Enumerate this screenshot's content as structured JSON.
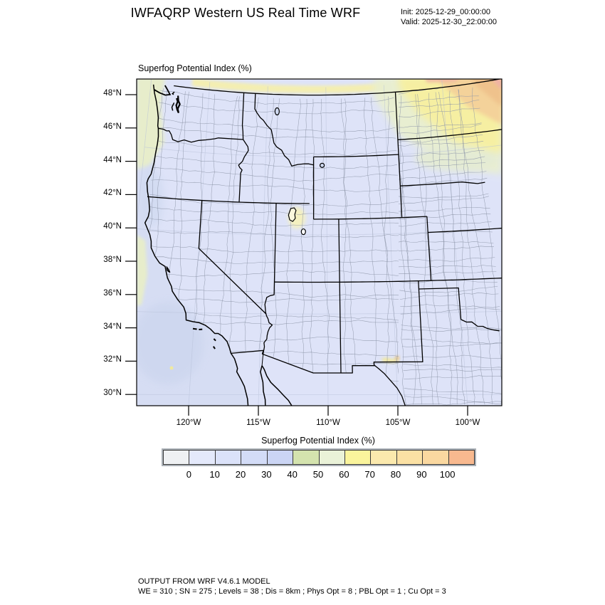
{
  "header": {
    "title": "IWFAQRP Western US Real Time WRF",
    "init": "Init: 2025-12-29_00:00:00",
    "valid": "Valid: 2025-12-30_22:00:00"
  },
  "map": {
    "subtitle": "Superfog Potential Index  (%)",
    "lat_ticks": [
      "48°N",
      "46°N",
      "44°N",
      "42°N",
      "40°N",
      "38°N",
      "36°N",
      "34°N",
      "32°N",
      "30°N"
    ],
    "lon_ticks": [
      "120°W",
      "115°W",
      "110°W",
      "105°W",
      "100°W"
    ],
    "palette": {
      "ocean": "#d6ddf3",
      "land": "#dee3f8",
      "ocean_green": "#e7edcb",
      "canada_yellow": "#f5efae",
      "ne_green": "#e9efcf",
      "ne_yellow": "#f7f0a0",
      "ne_orange": "#f4d29a",
      "ne_deep_orange": "#efc28c",
      "ne_pink": "#f0b4a4",
      "lake_fill": "#faf7dc",
      "nm_yellow": "#f2e89e",
      "county_line": "#8d95a8",
      "state_line": "#000000"
    }
  },
  "colorbar": {
    "title": "Superfog Potential Index  (%)",
    "tick_labels": [
      "0",
      "10",
      "20",
      "30",
      "40",
      "50",
      "60",
      "70",
      "80",
      "90",
      "100"
    ],
    "colors": [
      "#eff1f3",
      "#e4e9fb",
      "#dbe2f9",
      "#d3dcf7",
      "#cbd5f4",
      "#d4e3ae",
      "#eaf2d8",
      "#faf49c",
      "#fbe9ad",
      "#fbe1a4",
      "#fad8a0",
      "#f8b98f"
    ]
  },
  "footer": {
    "line1": "OUTPUT FROM WRF V4.6.1 MODEL",
    "line2": "WE = 310 ; SN = 275 ; Levels = 38 ; Dis = 8km ; Phys Opt = 8 ; PBL Opt = 1 ; Cu Opt = 3"
  }
}
